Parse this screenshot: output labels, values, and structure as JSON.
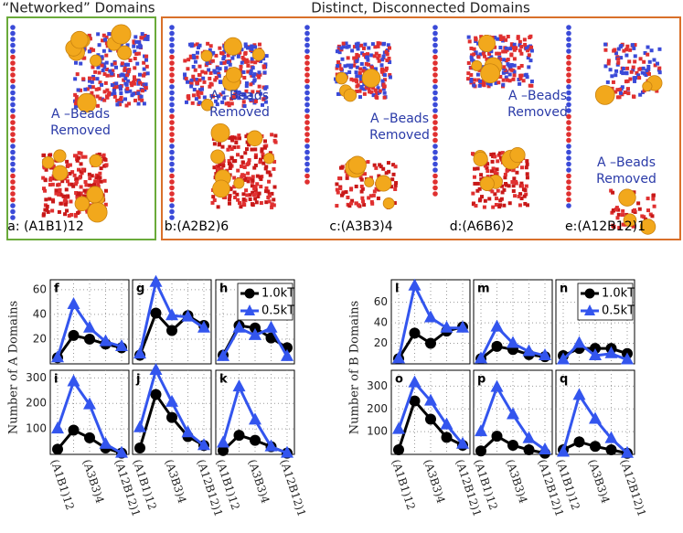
{
  "top": {
    "left_title": "“Networked” Domains",
    "right_title": "Distinct, Disconnected Domains",
    "panels": [
      {
        "label": "a: (A1B1)12",
        "note": [
          "A –Beads",
          "Removed"
        ]
      },
      {
        "label": "b:(A2B2)6",
        "note": [
          "A –Beads",
          "Removed"
        ]
      },
      {
        "label": "c:(A3B3)4",
        "note": [
          "A –Beads",
          "Removed"
        ]
      },
      {
        "label": "d:(A6B6)2",
        "note": [
          "A –Beads",
          "Removed"
        ]
      },
      {
        "label": "e:(A12B12)1",
        "note": [
          "A –Beads",
          "Removed"
        ]
      }
    ]
  },
  "chart_data": [
    {
      "type": "line",
      "title": "f",
      "ylabel": "Number of A Domains",
      "ylim": [
        0,
        68
      ],
      "yticks": [
        20,
        40,
        60
      ],
      "grid": true,
      "series": [
        {
          "color": "#000000",
          "marker": "circle",
          "values": [
            5,
            23,
            20,
            16,
            13
          ]
        },
        {
          "color": "#3355ee",
          "marker": "triangle",
          "values": [
            5,
            48,
            29,
            18,
            14
          ]
        }
      ]
    },
    {
      "type": "line",
      "title": "g",
      "ylim": [
        0,
        68
      ],
      "grid": true,
      "series": [
        {
          "color": "#000000",
          "marker": "circle",
          "values": [
            7,
            41,
            27,
            39,
            31
          ]
        },
        {
          "color": "#3355ee",
          "marker": "triangle",
          "values": [
            8,
            66,
            39,
            38,
            29
          ]
        }
      ]
    },
    {
      "type": "line",
      "title": "h",
      "ylim": [
        0,
        68
      ],
      "grid": true,
      "legend": "upper right",
      "series": [
        {
          "name": "1.0kT",
          "color": "#000000",
          "marker": "circle",
          "values": [
            7,
            31,
            29,
            21,
            13
          ]
        },
        {
          "name": "0.5kT",
          "color": "#3355ee",
          "marker": "triangle",
          "values": [
            6,
            29,
            23,
            29,
            6
          ]
        }
      ]
    },
    {
      "type": "line",
      "title": "i",
      "ylim": [
        0,
        330
      ],
      "yticks": [
        100,
        200,
        300
      ],
      "grid": true,
      "categories": [
        "(A1B1)12",
        null,
        "(A3B3)4",
        null,
        "(A12B12)1"
      ],
      "series": [
        {
          "color": "#000000",
          "marker": "circle",
          "values": [
            20,
            95,
            65,
            25,
            5
          ]
        },
        {
          "color": "#3355ee",
          "marker": "triangle",
          "values": [
            100,
            285,
            195,
            40,
            5
          ]
        }
      ]
    },
    {
      "type": "line",
      "title": "j",
      "ylim": [
        0,
        330
      ],
      "grid": true,
      "categories": [
        "(A1B1)12",
        null,
        "(A3B3)4",
        null,
        "(A12B12)1"
      ],
      "series": [
        {
          "color": "#000000",
          "marker": "circle",
          "values": [
            25,
            235,
            145,
            70,
            35
          ]
        },
        {
          "color": "#3355ee",
          "marker": "triangle",
          "values": [
            105,
            330,
            205,
            85,
            35
          ]
        }
      ]
    },
    {
      "type": "line",
      "title": "k",
      "ylim": [
        0,
        330
      ],
      "grid": true,
      "categories": [
        "(A1B1)12",
        null,
        "(A3B3)4",
        null,
        "(A12B12)1"
      ],
      "series": [
        {
          "color": "#000000",
          "marker": "circle",
          "values": [
            15,
            75,
            55,
            30,
            5
          ]
        },
        {
          "color": "#3355ee",
          "marker": "triangle",
          "values": [
            45,
            265,
            135,
            30,
            5
          ]
        }
      ]
    },
    {
      "type": "line",
      "title": "l",
      "ylabel": "Number of B Domains",
      "ylim": [
        0,
        82
      ],
      "yticks": [
        20,
        40,
        60
      ],
      "grid": true,
      "series": [
        {
          "color": "#000000",
          "marker": "circle",
          "values": [
            5,
            30,
            20,
            32,
            36
          ]
        },
        {
          "color": "#3355ee",
          "marker": "triangle",
          "values": [
            5,
            76,
            45,
            35,
            35
          ]
        }
      ]
    },
    {
      "type": "line",
      "title": "m",
      "ylim": [
        0,
        82
      ],
      "grid": true,
      "series": [
        {
          "color": "#000000",
          "marker": "circle",
          "values": [
            5,
            17,
            14,
            9,
            7
          ]
        },
        {
          "color": "#3355ee",
          "marker": "triangle",
          "values": [
            5,
            36,
            20,
            12,
            8
          ]
        }
      ]
    },
    {
      "type": "line",
      "title": "n",
      "ylim": [
        0,
        82
      ],
      "grid": true,
      "legend": "upper right",
      "series": [
        {
          "name": "1.0kT",
          "color": "#000000",
          "marker": "circle",
          "values": [
            8,
            15,
            15,
            15,
            10
          ]
        },
        {
          "name": "0.5kT",
          "color": "#3355ee",
          "marker": "triangle",
          "values": [
            4,
            20,
            8,
            10,
            4
          ]
        }
      ]
    },
    {
      "type": "line",
      "title": "o",
      "ylim": [
        0,
        370
      ],
      "yticks": [
        100,
        200,
        300
      ],
      "grid": true,
      "categories": [
        "(A1B1)12",
        null,
        "(A3B3)4",
        null,
        "(A12B12)1"
      ],
      "series": [
        {
          "color": "#000000",
          "marker": "circle",
          "values": [
            20,
            235,
            155,
            75,
            40
          ]
        },
        {
          "color": "#3355ee",
          "marker": "triangle",
          "values": [
            110,
            315,
            235,
            130,
            45
          ]
        }
      ]
    },
    {
      "type": "line",
      "title": "p",
      "ylim": [
        0,
        370
      ],
      "grid": true,
      "categories": [
        "(A1B1)12",
        null,
        "(A3B3)4",
        null,
        "(A12B12)1"
      ],
      "series": [
        {
          "color": "#000000",
          "marker": "circle",
          "values": [
            15,
            80,
            40,
            20,
            5
          ]
        },
        {
          "color": "#3355ee",
          "marker": "triangle",
          "values": [
            100,
            295,
            175,
            70,
            20
          ]
        }
      ]
    },
    {
      "type": "line",
      "title": "q",
      "ylim": [
        0,
        370
      ],
      "grid": true,
      "categories": [
        "(A1B1)12",
        null,
        "(A3B3)4",
        null,
        "(A12B12)1"
      ],
      "series": [
        {
          "color": "#000000",
          "marker": "circle",
          "values": [
            20,
            55,
            35,
            20,
            5
          ]
        },
        {
          "color": "#3355ee",
          "marker": "triangle",
          "values": [
            10,
            260,
            155,
            70,
            5
          ]
        }
      ]
    }
  ]
}
